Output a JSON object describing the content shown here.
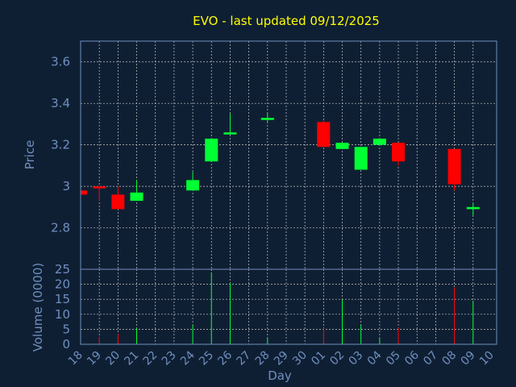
{
  "chart_data": {
    "type": "candlestick",
    "title": "EVO - last updated 09/12/2025",
    "xlabel": "Day",
    "price_panel": {
      "ylabel": "Price",
      "ylim": [
        2.6,
        3.7
      ],
      "yticks": [
        2.8,
        3,
        3.2,
        3.4,
        3.6
      ],
      "ytick_labels": [
        "2.8",
        "3",
        "3.2",
        "3.4",
        "3.6"
      ],
      "grid": true
    },
    "volume_panel": {
      "ylabel": "Volume (0000)",
      "ylim": [
        0,
        25
      ],
      "yticks": [
        0,
        5,
        10,
        15,
        20,
        25
      ],
      "ytick_labels": [
        "0",
        "5",
        "10",
        "15",
        "20",
        "25"
      ],
      "grid": true
    },
    "x_tick_labels": [
      "18",
      "19",
      "20",
      "21",
      "22",
      "23",
      "24",
      "25",
      "26",
      "27",
      "28",
      "29",
      "30",
      "01",
      "02",
      "03",
      "04",
      "05",
      "06",
      "07",
      "08",
      "09",
      "10"
    ],
    "colors": {
      "up": "#00ff33",
      "down": "#ff0000",
      "background": "#0f1f33",
      "title": "#ffff00",
      "axis_text": "#6f8fbf"
    },
    "candles": [
      {
        "day": "18",
        "open": 2.98,
        "high": 2.98,
        "low": 2.96,
        "close": 2.96,
        "volume": 0
      },
      {
        "day": "19",
        "open": 3.0,
        "high": 3.0,
        "low": 2.93,
        "close": 2.99,
        "volume": 2.5
      },
      {
        "day": "20",
        "open": 2.96,
        "high": 3.0,
        "low": 2.89,
        "close": 2.89,
        "volume": 3.5
      },
      {
        "day": "21",
        "open": 2.93,
        "high": 3.03,
        "low": 2.93,
        "close": 2.97,
        "volume": 5.5
      },
      {
        "day": "24",
        "open": 2.98,
        "high": 3.07,
        "low": 2.98,
        "close": 3.03,
        "volume": 6.5
      },
      {
        "day": "25",
        "open": 3.12,
        "high": 3.23,
        "low": 3.12,
        "close": 3.23,
        "volume": 24
      },
      {
        "day": "26",
        "open": 3.25,
        "high": 3.35,
        "low": 3.25,
        "close": 3.26,
        "volume": 20.5
      },
      {
        "day": "28",
        "open": 3.32,
        "high": 3.35,
        "low": 3.31,
        "close": 3.33,
        "volume": 2
      },
      {
        "day": "01",
        "open": 3.31,
        "high": 3.32,
        "low": 3.19,
        "close": 3.19,
        "volume": 5.5
      },
      {
        "day": "02",
        "open": 3.18,
        "high": 3.21,
        "low": 3.18,
        "close": 3.21,
        "volume": 15
      },
      {
        "day": "03",
        "open": 3.08,
        "high": 3.19,
        "low": 3.08,
        "close": 3.19,
        "volume": 6.5
      },
      {
        "day": "04",
        "open": 3.2,
        "high": 3.23,
        "low": 3.2,
        "close": 3.23,
        "volume": 2
      },
      {
        "day": "05",
        "open": 3.21,
        "high": 3.21,
        "low": 3.1,
        "close": 3.12,
        "volume": 5.5
      },
      {
        "day": "08",
        "open": 3.18,
        "high": 3.18,
        "low": 2.98,
        "close": 3.01,
        "volume": 19
      },
      {
        "day": "09",
        "open": 2.89,
        "high": 2.92,
        "low": 2.86,
        "close": 2.9,
        "volume": 14.5
      }
    ]
  }
}
